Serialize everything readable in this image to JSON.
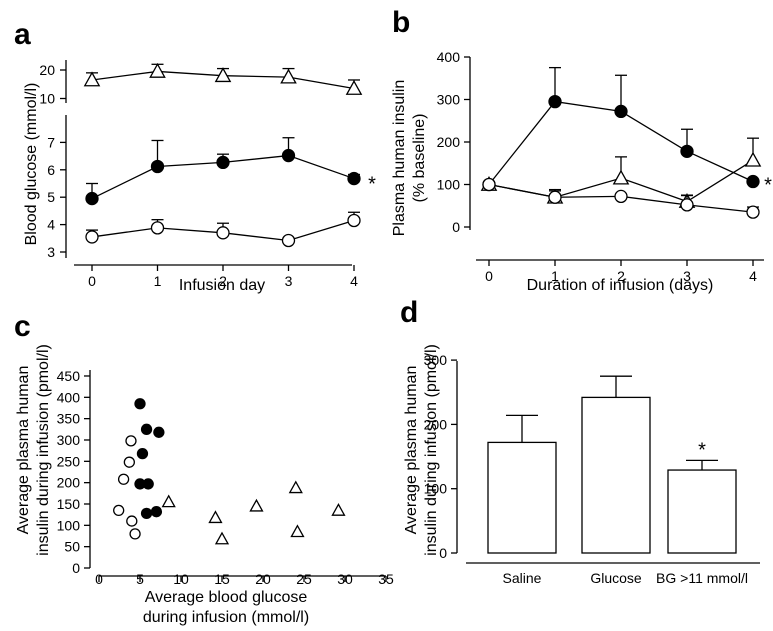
{
  "chart_data": [
    {
      "panel": "a",
      "type": "line",
      "xlabel": "Infusion day",
      "ylabel": "Blood glucose (mmol/l)",
      "x": [
        0,
        1,
        2,
        3,
        4
      ],
      "xticks": [
        "0",
        "1",
        "2",
        "3",
        "4"
      ],
      "yticks_upper": [
        "10",
        "20"
      ],
      "yticks_lower": [
        "3",
        "4",
        "5",
        "6",
        "7"
      ],
      "ylim_upper": [
        10,
        22
      ],
      "ylim_lower": [
        2.8,
        7.2
      ],
      "broken_axis": true,
      "series": [
        {
          "marker": "triangle-open",
          "axis": "upper",
          "values": [
            16.5,
            19.5,
            18.0,
            17.5,
            13.5
          ],
          "err": [
            2.5,
            2.5,
            2.5,
            3.0,
            3.0
          ]
        },
        {
          "marker": "circle-filled",
          "axis": "lower",
          "values": [
            4.95,
            6.12,
            6.27,
            6.52,
            5.68
          ],
          "err": [
            0.55,
            0.95,
            0.3,
            0.65,
            0.15
          ],
          "annotation": "*"
        },
        {
          "marker": "circle-open",
          "axis": "lower",
          "values": [
            3.55,
            3.88,
            3.7,
            3.42,
            4.15
          ],
          "err": [
            0.25,
            0.3,
            0.35,
            0.0,
            0.3
          ]
        }
      ]
    },
    {
      "panel": "b",
      "type": "line",
      "xlabel": "Duration of  infusion  (days)",
      "ylabel": "Plasma human insulin (% baseline)",
      "ylabel_lines": [
        "Plasma human insulin",
        "(% baseline)"
      ],
      "x": [
        0,
        1,
        2,
        3,
        4
      ],
      "xticks": [
        "0",
        "1",
        "2",
        "3",
        "4"
      ],
      "yticks": [
        "0",
        "100",
        "200",
        "300",
        "400"
      ],
      "ylim": [
        0,
        400
      ],
      "series": [
        {
          "marker": "circle-filled",
          "values": [
            100,
            295,
            272,
            178,
            107
          ],
          "err": [
            0,
            80,
            85,
            52,
            0
          ],
          "annotation": "*"
        },
        {
          "marker": "triangle-open",
          "values": [
            100,
            70,
            115,
            60,
            157
          ],
          "err": [
            0,
            18,
            50,
            15,
            52
          ]
        },
        {
          "marker": "circle-open",
          "values": [
            100,
            70,
            72,
            52,
            35
          ],
          "err": [
            0,
            15,
            0,
            22,
            12
          ]
        }
      ]
    },
    {
      "panel": "c",
      "type": "scatter",
      "xlabel": "Average blood glucose during infusion (mmol/l)",
      "xlabel_lines": [
        "Average blood glucose",
        "during infusion (mmol/l)"
      ],
      "ylabel": "Average plasma human insulin during infusion (pmol/l)",
      "ylabel_lines": [
        "Average plasma human",
        "insulin during infusion (pmol/l)"
      ],
      "xticks": [
        "0",
        "5",
        "10",
        "15",
        "20",
        "25",
        "30",
        "35"
      ],
      "yticks": [
        "0",
        "50",
        "100",
        "150",
        "200",
        "250",
        "300",
        "350",
        "400",
        "450"
      ],
      "xlim": [
        0,
        35
      ],
      "ylim": [
        0,
        450
      ],
      "series": [
        {
          "marker": "circle-filled",
          "points": [
            [
              5.0,
              385
            ],
            [
              5.3,
              268
            ],
            [
              5.8,
              325
            ],
            [
              7.3,
              318
            ],
            [
              5.0,
              197
            ],
            [
              6.0,
              197
            ],
            [
              5.8,
              128
            ],
            [
              7.0,
              132
            ]
          ]
        },
        {
          "marker": "circle-open",
          "points": [
            [
              3.9,
              298
            ],
            [
              3.7,
              248
            ],
            [
              3.0,
              208
            ],
            [
              2.4,
              135
            ],
            [
              4.0,
              110
            ],
            [
              4.4,
              80
            ]
          ]
        },
        {
          "marker": "triangle-open",
          "points": [
            [
              8.5,
              155
            ],
            [
              14.2,
              118
            ],
            [
              15.0,
              68
            ],
            [
              19.2,
              145
            ],
            [
              24.0,
              188
            ],
            [
              24.2,
              85
            ],
            [
              29.2,
              135
            ]
          ]
        }
      ]
    },
    {
      "panel": "d",
      "type": "bar",
      "ylabel": "Average plasma human insulin during infusion (pmol/l)",
      "ylabel_lines": [
        "Average plasma human",
        "insulin during infusion (pmol/l)"
      ],
      "categories": [
        "Saline",
        "Glucose",
        "BG >11 mmol/l"
      ],
      "values": [
        172,
        242,
        129
      ],
      "err": [
        42,
        33,
        15
      ],
      "annotations": [
        "",
        "",
        "*"
      ],
      "yticks": [
        "0",
        "100",
        "200",
        "300"
      ],
      "ylim": [
        0,
        300
      ]
    }
  ],
  "panel_labels": [
    "a",
    "b",
    "c",
    "d"
  ]
}
